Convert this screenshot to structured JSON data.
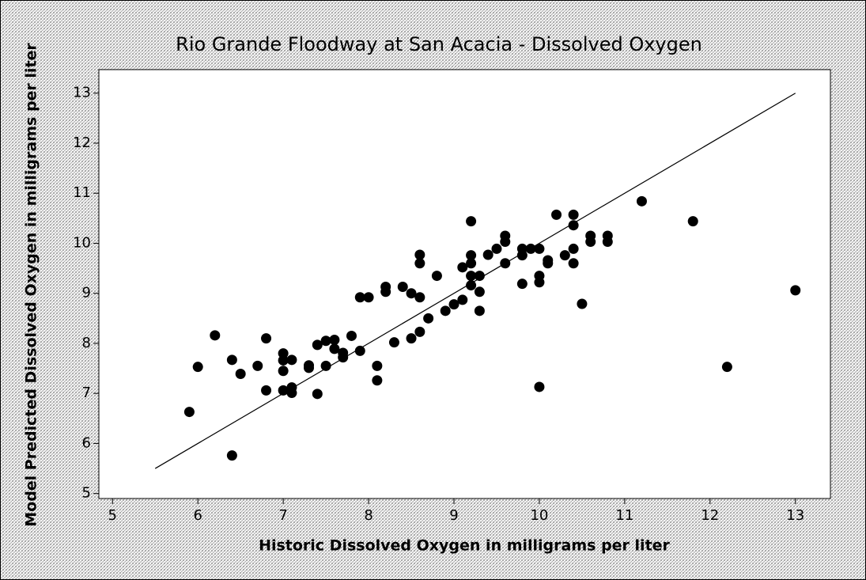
{
  "chart_data": {
    "type": "scatter",
    "title": "Rio Grande Floodway at San Acacia - Dissolved Oxygen",
    "x_label": "Historic Dissolved Oxygen in milligrams per liter",
    "y_label": "Model Predicted Dissolved Oxygen in milligrams per liter",
    "color": "#000000",
    "x": [
      5.9,
      6.0,
      6.2,
      6.4,
      6.4,
      6.5,
      6.7,
      6.8,
      6.8,
      7.0,
      7.0,
      7.0,
      7.0,
      7.1,
      7.1,
      7.1,
      7.3,
      7.3,
      7.4,
      7.4,
      7.5,
      7.5,
      7.6,
      7.6,
      7.7,
      7.7,
      7.8,
      7.9,
      7.9,
      8.0,
      8.1,
      8.1,
      8.2,
      8.2,
      8.3,
      8.4,
      8.5,
      8.5,
      8.6,
      8.6,
      8.6,
      8.6,
      8.7,
      8.8,
      8.9,
      9.0,
      9.1,
      9.1,
      9.2,
      9.2,
      9.2,
      9.2,
      9.2,
      9.3,
      9.3,
      9.3,
      9.4,
      9.5,
      9.6,
      9.6,
      9.6,
      9.8,
      9.8,
      9.8,
      9.9,
      10.0,
      10.0,
      10.0,
      10.0,
      10.1,
      10.1,
      10.2,
      10.3,
      10.4,
      10.4,
      10.4,
      10.4,
      10.5,
      10.6,
      10.6,
      10.8,
      10.8,
      11.2,
      11.8,
      12.2,
      13.0
    ],
    "y": [
      6.63,
      7.53,
      8.16,
      7.67,
      5.76,
      7.39,
      7.55,
      8.1,
      7.06,
      7.8,
      7.66,
      7.45,
      7.06,
      7.67,
      7.12,
      7.01,
      7.51,
      7.56,
      7.97,
      6.99,
      7.55,
      8.05,
      8.07,
      7.89,
      7.81,
      7.72,
      8.15,
      7.85,
      8.92,
      8.92,
      7.55,
      7.26,
      9.13,
      9.03,
      8.02,
      9.13,
      9.0,
      8.1,
      8.92,
      8.23,
      9.77,
      9.6,
      8.5,
      9.35,
      8.65,
      8.78,
      8.87,
      9.52,
      9.16,
      9.35,
      9.6,
      9.76,
      10.44,
      9.35,
      9.03,
      8.65,
      9.77,
      9.89,
      10.15,
      10.03,
      9.6,
      9.19,
      9.89,
      9.76,
      9.89,
      9.89,
      9.35,
      9.22,
      7.13,
      9.66,
      9.6,
      10.57,
      9.76,
      10.57,
      10.36,
      9.89,
      9.6,
      8.79,
      10.15,
      10.03,
      10.15,
      10.03,
      10.84,
      10.44,
      7.53,
      9.06
    ],
    "reference_line": {
      "x": [
        5.5,
        13
      ],
      "y": [
        5.5,
        13
      ]
    },
    "xlim": [
      4.84,
      13.41
    ],
    "ylim": [
      4.9,
      13.47
    ],
    "xticks": [
      5,
      6,
      7,
      8,
      9,
      10,
      11,
      12,
      13
    ],
    "yticks": [
      5,
      6,
      7,
      8,
      9,
      10,
      11,
      12,
      13
    ]
  }
}
